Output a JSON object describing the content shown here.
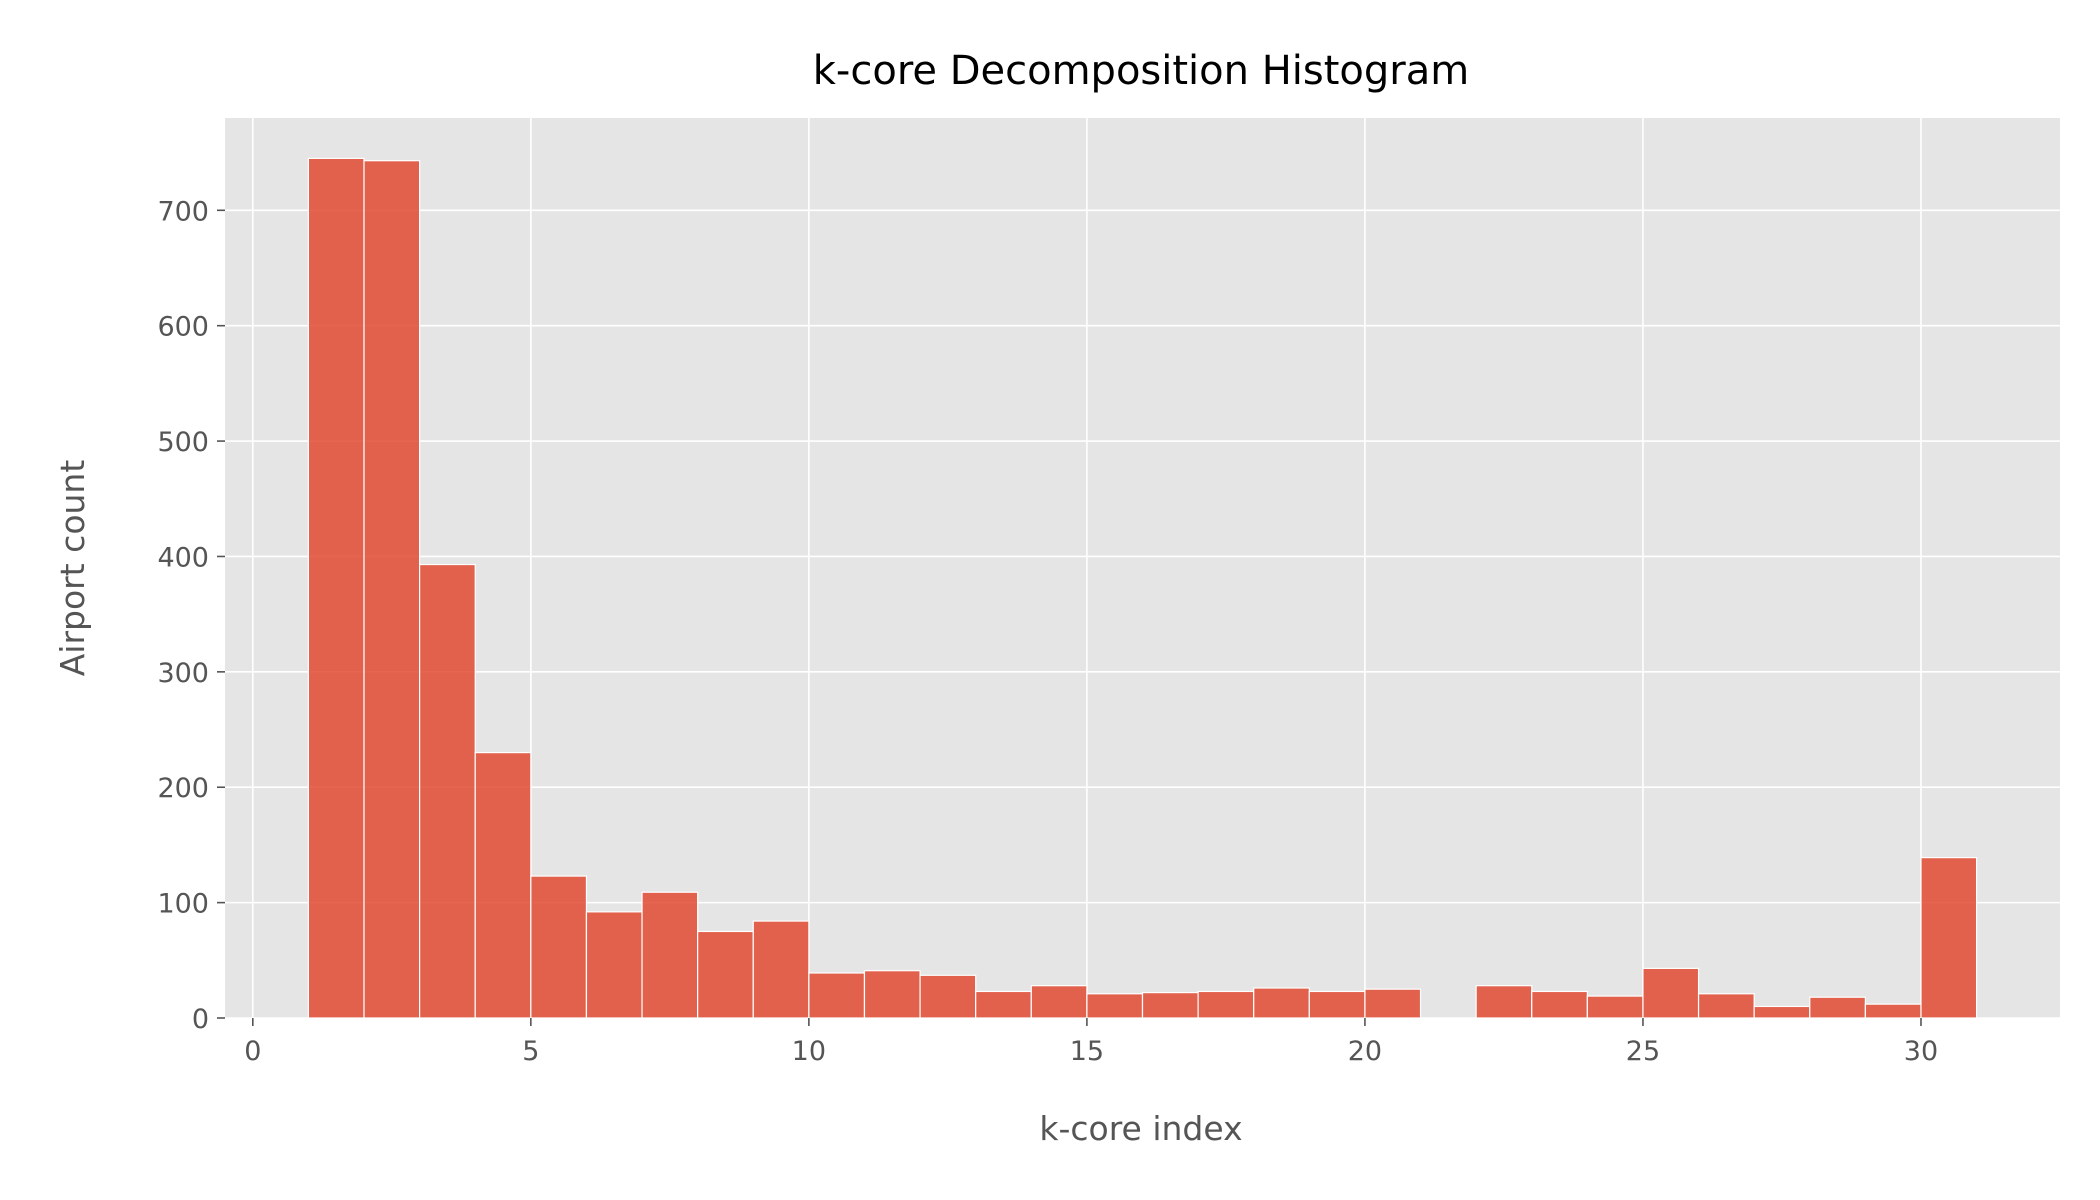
{
  "chart_data": {
    "type": "bar",
    "subtype": "histogram",
    "title": "k-core Decomposition Histogram",
    "xlabel": "k-core index",
    "ylabel": "Airport count",
    "xlim": [
      -0.5,
      32.5
    ],
    "ylim": [
      0,
      780
    ],
    "xticks": [
      0,
      5,
      10,
      15,
      20,
      25,
      30
    ],
    "yticks": [
      0,
      100,
      200,
      300,
      400,
      500,
      600,
      700
    ],
    "grid": true,
    "legend": "none",
    "bin_width": 1,
    "bins": [
      {
        "x0": 1,
        "x1": 2,
        "count": 745
      },
      {
        "x0": 2,
        "x1": 3,
        "count": 743
      },
      {
        "x0": 3,
        "x1": 4,
        "count": 393
      },
      {
        "x0": 4,
        "x1": 5,
        "count": 230
      },
      {
        "x0": 5,
        "x1": 6,
        "count": 123
      },
      {
        "x0": 6,
        "x1": 7,
        "count": 92
      },
      {
        "x0": 7,
        "x1": 8,
        "count": 109
      },
      {
        "x0": 8,
        "x1": 9,
        "count": 75
      },
      {
        "x0": 9,
        "x1": 10,
        "count": 84
      },
      {
        "x0": 10,
        "x1": 11,
        "count": 39
      },
      {
        "x0": 11,
        "x1": 12,
        "count": 41
      },
      {
        "x0": 12,
        "x1": 13,
        "count": 37
      },
      {
        "x0": 13,
        "x1": 14,
        "count": 23
      },
      {
        "x0": 14,
        "x1": 15,
        "count": 28
      },
      {
        "x0": 15,
        "x1": 16,
        "count": 21
      },
      {
        "x0": 16,
        "x1": 17,
        "count": 22
      },
      {
        "x0": 17,
        "x1": 18,
        "count": 23
      },
      {
        "x0": 18,
        "x1": 19,
        "count": 26
      },
      {
        "x0": 19,
        "x1": 20,
        "count": 23
      },
      {
        "x0": 20,
        "x1": 21,
        "count": 25
      },
      {
        "x0": 21,
        "x1": 22,
        "count": 0
      },
      {
        "x0": 22,
        "x1": 23,
        "count": 28
      },
      {
        "x0": 23,
        "x1": 24,
        "count": 23
      },
      {
        "x0": 24,
        "x1": 25,
        "count": 19
      },
      {
        "x0": 25,
        "x1": 26,
        "count": 43
      },
      {
        "x0": 26,
        "x1": 27,
        "count": 21
      },
      {
        "x0": 27,
        "x1": 28,
        "count": 10
      },
      {
        "x0": 28,
        "x1": 29,
        "count": 18
      },
      {
        "x0": 29,
        "x1": 30,
        "count": 12
      },
      {
        "x0": 30,
        "x1": 31,
        "count": 139
      }
    ]
  },
  "colors": {
    "bar": "#E24A33",
    "plot_background": "#E5E5E5",
    "grid": "#FFFFFF"
  }
}
